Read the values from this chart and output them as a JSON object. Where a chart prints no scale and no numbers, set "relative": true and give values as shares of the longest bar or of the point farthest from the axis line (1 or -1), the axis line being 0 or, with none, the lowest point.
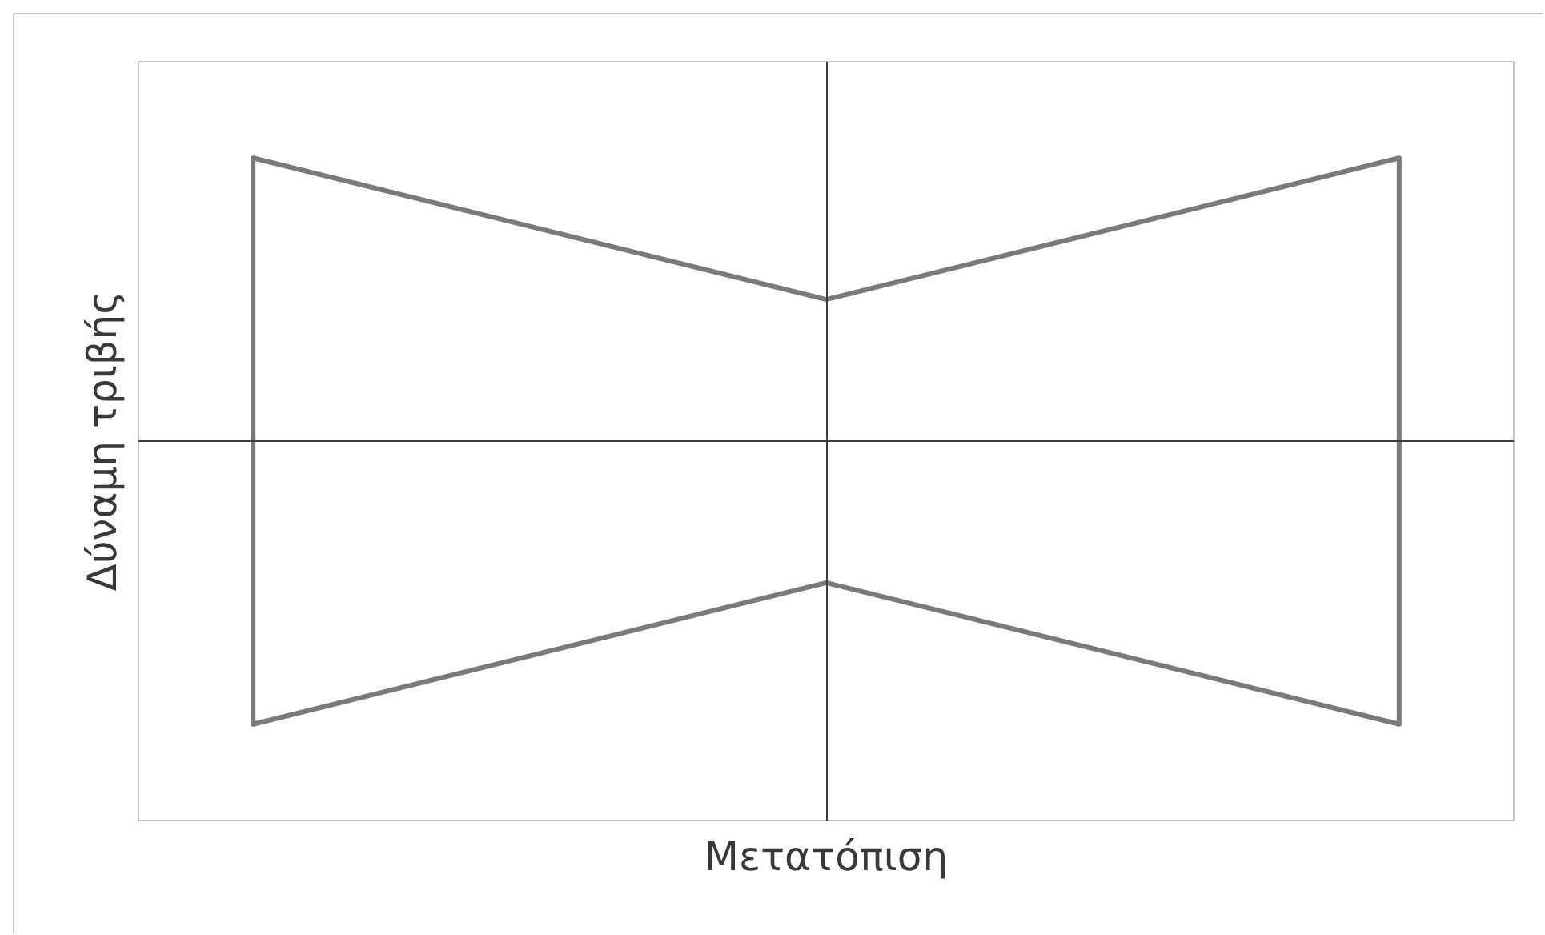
{
  "chart_data": {
    "type": "line",
    "xlabel": "Μετατόπιση",
    "ylabel": "Δύναμη τριβής",
    "relative": true,
    "categories": [
      null,
      null,
      null
    ],
    "series": [
      {
        "color": "#7a7a7a",
        "values": [
          1,
          0.5,
          1
        ]
      },
      {
        "color": "#7a7a7a",
        "values": [
          -1,
          -0.5,
          -1
        ]
      }
    ]
  }
}
